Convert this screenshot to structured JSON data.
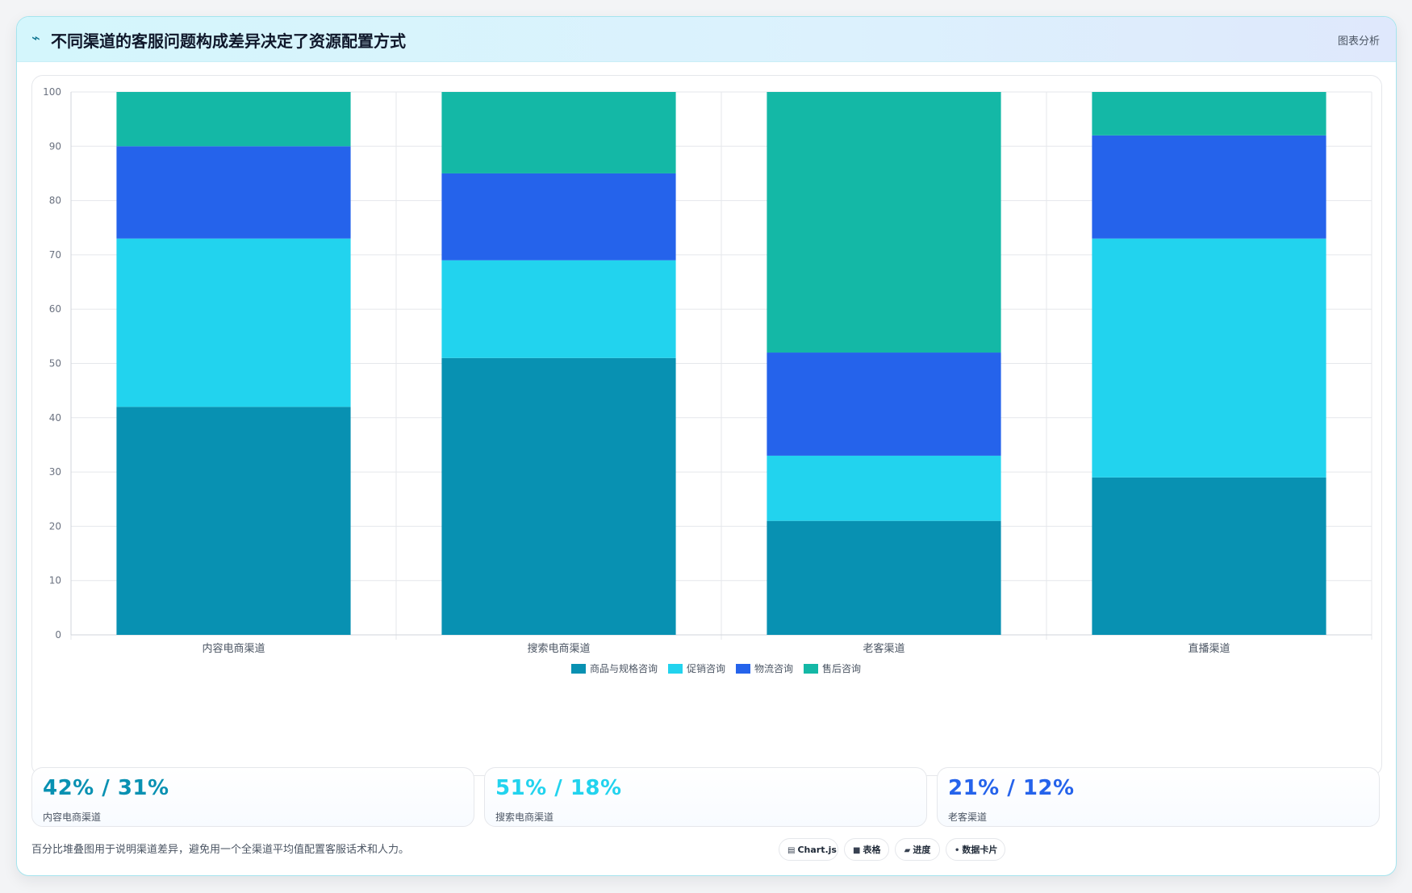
{
  "header": {
    "title_icon": "trend-wave-icon",
    "title": "不同渠道的客服问题构成差异决定了资源配置方式",
    "tag": "图表分析"
  },
  "chart_data": {
    "type": "bar",
    "stacked": true,
    "categories": [
      "内容电商渠道",
      "搜索电商渠道",
      "老客渠道",
      "直播渠道"
    ],
    "series": [
      {
        "name": "商品与规格咨询",
        "color": "#0891b2",
        "values": [
          42,
          51,
          21,
          29
        ]
      },
      {
        "name": "促销咨询",
        "color": "#22d3ee",
        "values": [
          31,
          18,
          12,
          44
        ]
      },
      {
        "name": "物流咨询",
        "color": "#2563eb",
        "values": [
          17,
          16,
          19,
          19
        ]
      },
      {
        "name": "售后咨询",
        "color": "#14b8a6",
        "values": [
          10,
          15,
          48,
          8
        ]
      }
    ],
    "ylim": [
      0,
      100
    ],
    "yticks": [
      0,
      10,
      20,
      30,
      40,
      50,
      60,
      70,
      80,
      90,
      100
    ],
    "xlabel": "",
    "ylabel": "",
    "grid": true,
    "legend": "bottom"
  },
  "stats": [
    {
      "value": "42% / 31%",
      "label": "内容电商渠道",
      "color": "#0891b2"
    },
    {
      "value": "51% / 18%",
      "label": "搜索电商渠道",
      "color": "#22d3ee"
    },
    {
      "value": "21% / 12%",
      "label": "老客渠道",
      "color": "#2563eb"
    }
  ],
  "footer": {
    "note": "百分比堆叠图用于说明渠道差异，避免用一个全渠道平均值配置客服话术和人力。",
    "chips": [
      {
        "icon": "chart-icon",
        "glyph": "▤",
        "label": "Chart.js"
      },
      {
        "icon": "table-icon",
        "glyph": "■",
        "label": "表格"
      },
      {
        "icon": "progress-icon",
        "glyph": "▰",
        "label": "进度"
      },
      {
        "icon": "card-icon",
        "glyph": "•",
        "label": "数据卡片"
      }
    ]
  }
}
